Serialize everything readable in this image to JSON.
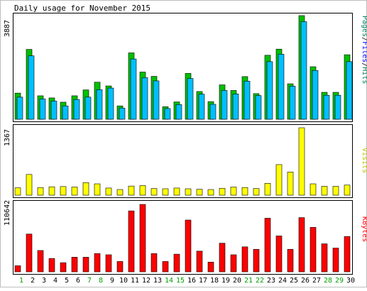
{
  "chart_data": [
    {
      "type": "bar",
      "title": "Daily usage for November 2015",
      "ylabel_max": "3887",
      "legend": [
        {
          "name": "Pages",
          "color": "#00805c"
        },
        {
          "name": "Files",
          "color": "#0000ff"
        },
        {
          "name": "Hits",
          "color": "#00805c"
        }
      ],
      "legend_separator": "/",
      "categories": [
        "1",
        "2",
        "3",
        "4",
        "5",
        "6",
        "7",
        "8",
        "9",
        "10",
        "11",
        "12",
        "13",
        "14",
        "15",
        "16",
        "17",
        "18",
        "19",
        "20",
        "21",
        "22",
        "23",
        "24",
        "25",
        "26",
        "27",
        "28",
        "29",
        "30"
      ],
      "ylim": [
        0,
        3887
      ],
      "series": [
        {
          "name": "Hits",
          "color": "#00c000",
          "values": [
            980,
            2620,
            880,
            800,
            640,
            880,
            1100,
            1390,
            1250,
            500,
            2490,
            1770,
            1610,
            470,
            650,
            1720,
            1040,
            660,
            1290,
            1080,
            1600,
            960,
            2400,
            2630,
            1330,
            3887,
            1970,
            1010,
            1010,
            2420
          ]
        },
        {
          "name": "Files",
          "color": "#00bfff",
          "values": [
            830,
            2380,
            760,
            680,
            500,
            740,
            830,
            1110,
            1170,
            420,
            2260,
            1560,
            1440,
            400,
            550,
            1530,
            940,
            560,
            1080,
            950,
            1430,
            890,
            2160,
            2440,
            1240,
            3660,
            1830,
            900,
            900,
            2160
          ]
        }
      ]
    },
    {
      "type": "bar",
      "ylabel_max": "1367",
      "legend": [
        {
          "name": "Visits",
          "color": "#c0c000"
        }
      ],
      "categories": [
        "1",
        "2",
        "3",
        "4",
        "5",
        "6",
        "7",
        "8",
        "9",
        "10",
        "11",
        "12",
        "13",
        "14",
        "15",
        "16",
        "17",
        "18",
        "19",
        "20",
        "21",
        "22",
        "23",
        "24",
        "25",
        "26",
        "27",
        "28",
        "29",
        "30"
      ],
      "ylim": [
        0,
        1367
      ],
      "series": [
        {
          "name": "Visits",
          "color": "#ffff00",
          "values": [
            150,
            420,
            155,
            170,
            175,
            165,
            255,
            230,
            145,
            115,
            185,
            195,
            135,
            130,
            145,
            130,
            120,
            115,
            140,
            165,
            155,
            135,
            240,
            620,
            470,
            1367,
            230,
            180,
            180,
            205
          ]
        }
      ]
    },
    {
      "type": "bar",
      "ylabel_max": "110642",
      "legend": [
        {
          "name": "KBytes",
          "color": "#ff0000"
        }
      ],
      "categories": [
        "1",
        "2",
        "3",
        "4",
        "5",
        "6",
        "7",
        "8",
        "9",
        "10",
        "11",
        "12",
        "13",
        "14",
        "15",
        "16",
        "17",
        "18",
        "19",
        "20",
        "21",
        "22",
        "23",
        "24",
        "25",
        "26",
        "27",
        "28",
        "29",
        "30"
      ],
      "ylim": [
        0,
        110642
      ],
      "series": [
        {
          "name": "KBytes",
          "color": "#ff0000",
          "values": [
            10000,
            62000,
            35000,
            22000,
            15000,
            24000,
            24000,
            30000,
            28000,
            17000,
            100000,
            110642,
            30000,
            17000,
            29000,
            85000,
            34000,
            16000,
            47000,
            28000,
            41000,
            37000,
            88000,
            59000,
            37000,
            89000,
            73000,
            46000,
            39000,
            58000
          ]
        }
      ]
    }
  ],
  "x_axis": {
    "weekend_days": [
      1,
      7,
      8,
      14,
      15,
      21,
      22,
      28,
      29
    ],
    "weekday_color": "#000000",
    "weekend_color": "#00a000"
  }
}
